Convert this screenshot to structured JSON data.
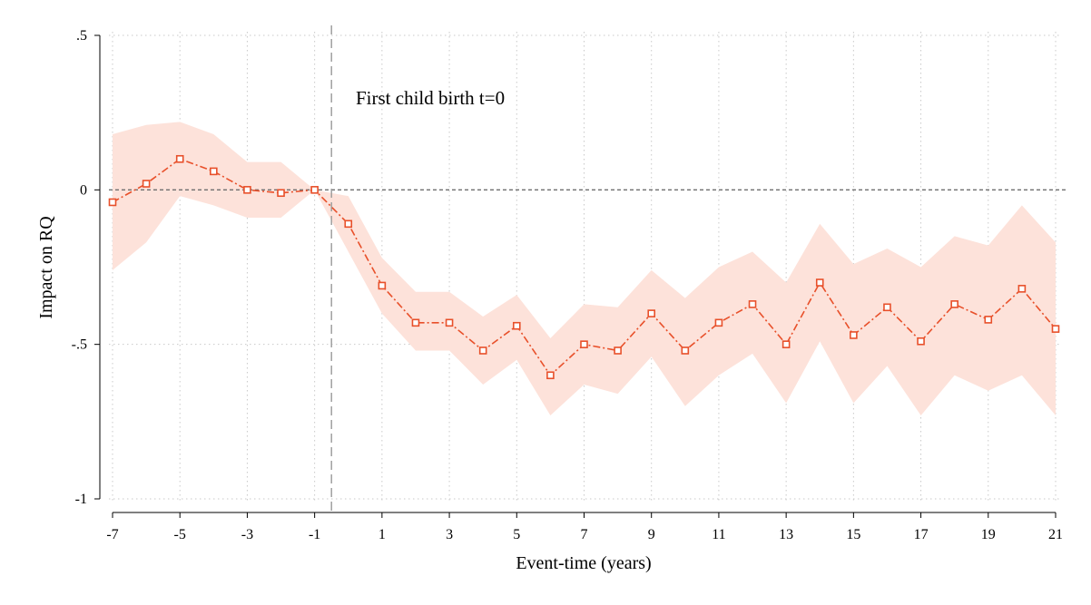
{
  "chart_data": {
    "type": "line",
    "title": "",
    "xlabel": "Event-time (years)",
    "ylabel": "Impact on RQ",
    "xlim": [
      -7,
      21
    ],
    "ylim": [
      -1,
      0.5
    ],
    "x_ticks": [
      -7,
      -5,
      -3,
      -1,
      1,
      3,
      5,
      7,
      9,
      11,
      13,
      15,
      17,
      19,
      21
    ],
    "x_tick_labels": [
      "-7",
      "-5",
      "-3",
      "-1",
      "1",
      "3",
      "5",
      "7",
      "9",
      "11",
      "13",
      "15",
      "17",
      "19",
      "21"
    ],
    "y_ticks": [
      0.5,
      0,
      -0.5,
      -1
    ],
    "y_tick_labels": [
      ".5",
      "0",
      "-.5",
      "-1"
    ],
    "grid": true,
    "annotation": "First child birth t=0",
    "event_line_x": -0.5,
    "zero_reference_line": 0,
    "series": [
      {
        "x": [
          -7,
          -6,
          -5,
          -4,
          -3,
          -2,
          -1,
          0,
          1,
          2,
          3,
          4,
          5,
          6,
          7,
          8,
          9,
          10,
          11,
          12,
          13,
          14,
          15,
          16,
          17,
          18,
          19,
          20,
          21
        ],
        "values": [
          -0.04,
          0.02,
          0.1,
          0.06,
          0.0,
          -0.01,
          0.0,
          -0.11,
          -0.31,
          -0.43,
          -0.43,
          -0.52,
          -0.44,
          -0.6,
          -0.5,
          -0.52,
          -0.4,
          -0.52,
          -0.43,
          -0.37,
          -0.5,
          -0.3,
          -0.47,
          -0.38,
          -0.49,
          -0.37,
          -0.42,
          -0.32,
          -0.45
        ],
        "ci_upper": [
          0.18,
          0.21,
          0.22,
          0.18,
          0.09,
          0.09,
          0.0,
          -0.02,
          -0.22,
          -0.33,
          -0.33,
          -0.41,
          -0.34,
          -0.48,
          -0.37,
          -0.38,
          -0.26,
          -0.35,
          -0.25,
          -0.2,
          -0.3,
          -0.11,
          -0.24,
          -0.19,
          -0.25,
          -0.15,
          -0.18,
          -0.05,
          -0.17
        ],
        "ci_lower": [
          -0.26,
          -0.17,
          -0.02,
          -0.05,
          -0.09,
          -0.09,
          0.0,
          -0.2,
          -0.4,
          -0.52,
          -0.52,
          -0.63,
          -0.55,
          -0.73,
          -0.63,
          -0.66,
          -0.54,
          -0.7,
          -0.6,
          -0.53,
          -0.69,
          -0.49,
          -0.69,
          -0.57,
          -0.73,
          -0.6,
          -0.65,
          -0.6,
          -0.73
        ]
      }
    ],
    "colors": {
      "line": "#E8502A",
      "ci_band": "#FDE2DA",
      "grid": "#c9c9c9",
      "reference": "#6e6e6e"
    }
  }
}
